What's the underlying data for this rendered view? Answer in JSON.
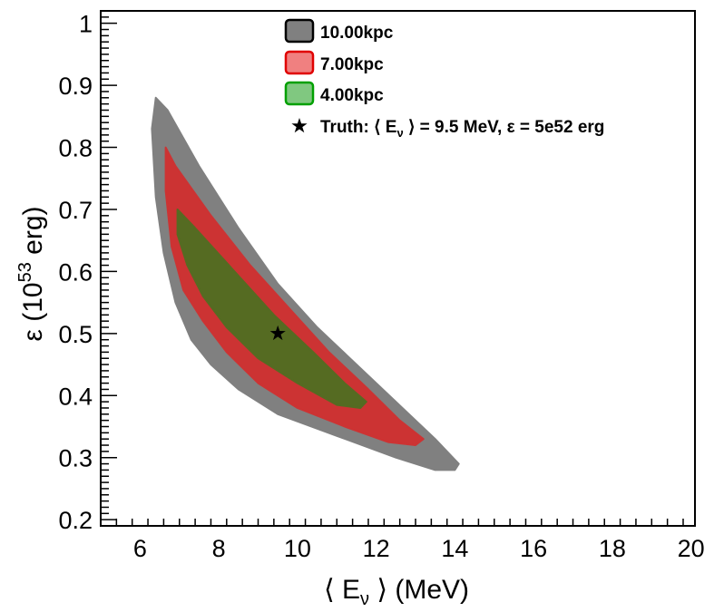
{
  "chart_data": {
    "type": "contour",
    "xlabel": {
      "open": "⟨ E",
      "sub": "ν",
      "close": " ⟩ (MeV)"
    },
    "ylabel": {
      "main": "ε (10",
      "sup": "53",
      "end": " erg)"
    },
    "xlim": [
      5,
      20.1
    ],
    "ylim": [
      0.19,
      1.02
    ],
    "x_ticks": [
      6,
      8,
      10,
      12,
      14,
      16,
      18,
      20
    ],
    "x_tick_labels": [
      "6",
      "8",
      "10",
      "12",
      "14",
      "16",
      "18",
      "20"
    ],
    "y_ticks": [
      0.2,
      0.3,
      0.4,
      0.5,
      0.6,
      0.7,
      0.8,
      0.9,
      1.0
    ],
    "y_tick_labels": [
      "0.2",
      "0.3",
      "0.4",
      "0.5",
      "0.6",
      "0.7",
      "0.8",
      "0.9",
      "1"
    ],
    "series": [
      {
        "name": "10.00kpc",
        "color": "#808080",
        "polygon": [
          [
            6.4,
            0.88
          ],
          [
            6.7,
            0.86
          ],
          [
            7.5,
            0.77
          ],
          [
            8.5,
            0.67
          ],
          [
            9.5,
            0.58
          ],
          [
            10.5,
            0.51
          ],
          [
            11.5,
            0.45
          ],
          [
            12.5,
            0.39
          ],
          [
            13.5,
            0.33
          ],
          [
            14.1,
            0.29
          ],
          [
            14.0,
            0.28
          ],
          [
            13.5,
            0.28
          ],
          [
            12.5,
            0.3
          ],
          [
            11.0,
            0.335
          ],
          [
            9.5,
            0.37
          ],
          [
            8.5,
            0.41
          ],
          [
            7.8,
            0.45
          ],
          [
            7.3,
            0.49
          ],
          [
            6.9,
            0.55
          ],
          [
            6.6,
            0.63
          ],
          [
            6.4,
            0.72
          ],
          [
            6.3,
            0.83
          ]
        ]
      },
      {
        "name": "7.00kpc",
        "color": "#cc3333",
        "polygon": [
          [
            6.65,
            0.8
          ],
          [
            6.9,
            0.77
          ],
          [
            7.8,
            0.69
          ],
          [
            8.8,
            0.61
          ],
          [
            9.8,
            0.54
          ],
          [
            10.8,
            0.47
          ],
          [
            11.8,
            0.41
          ],
          [
            12.6,
            0.36
          ],
          [
            13.2,
            0.33
          ],
          [
            13.0,
            0.32
          ],
          [
            12.3,
            0.325
          ],
          [
            11.2,
            0.35
          ],
          [
            10.0,
            0.38
          ],
          [
            9.0,
            0.42
          ],
          [
            8.2,
            0.47
          ],
          [
            7.6,
            0.52
          ],
          [
            7.1,
            0.57
          ],
          [
            6.8,
            0.64
          ],
          [
            6.65,
            0.73
          ]
        ]
      },
      {
        "name": "4.00kpc",
        "color": "#556b22",
        "polygon": [
          [
            6.95,
            0.7
          ],
          [
            7.4,
            0.67
          ],
          [
            8.4,
            0.6
          ],
          [
            9.4,
            0.53
          ],
          [
            10.4,
            0.47
          ],
          [
            11.2,
            0.42
          ],
          [
            11.75,
            0.39
          ],
          [
            11.6,
            0.38
          ],
          [
            11.0,
            0.385
          ],
          [
            10.0,
            0.42
          ],
          [
            9.0,
            0.46
          ],
          [
            8.2,
            0.51
          ],
          [
            7.6,
            0.56
          ],
          [
            7.2,
            0.61
          ],
          [
            6.95,
            0.66
          ]
        ]
      }
    ],
    "truth_marker": {
      "x": 9.5,
      "y": 0.5
    },
    "legend": {
      "placement": "top-center",
      "items": [
        {
          "label": "10.00kpc",
          "fill": "#808080",
          "stroke": "#000000"
        },
        {
          "label": "7.00kpc",
          "fill": "#f08080",
          "stroke": "#e00000"
        },
        {
          "label": "4.00kpc",
          "fill": "#80c880",
          "stroke": "#00a000"
        }
      ],
      "truth": {
        "pre": "Truth: ⟨ E",
        "sub": "ν",
        "post": " ⟩ = 9.5 MeV, ε = 5e52 erg"
      }
    }
  }
}
